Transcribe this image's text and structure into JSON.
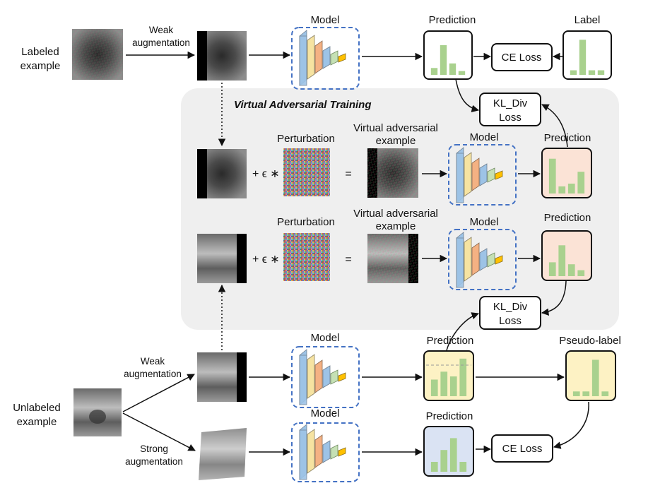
{
  "labels": {
    "labeled_example_1": "Labeled",
    "labeled_example_2": "example",
    "unlabeled_example_1": "Unlabeled",
    "unlabeled_example_2": "example",
    "weak_aug_top_1": "Weak",
    "weak_aug_top_2": "augmentation",
    "weak_aug_bottom_1": "Weak",
    "weak_aug_bottom_2": "augmentation",
    "strong_aug_1": "Strong",
    "strong_aug_2": "augmentation",
    "model_1": "Model",
    "model_2": "Model",
    "model_3": "Model",
    "model_4": "Model",
    "model_5": "Model",
    "prediction_1": "Prediction",
    "prediction_2": "Prediction",
    "prediction_3": "Prediction",
    "prediction_4": "Prediction",
    "prediction_5": "Prediction",
    "label": "Label",
    "pseudo_label": "Pseudo-label",
    "ce_loss_top": "CE Loss",
    "ce_loss_bottom": "CE Loss",
    "kl_div_1a": "KL_Div",
    "kl_div_1b": "Loss",
    "kl_div_2a": "KL_Div",
    "kl_div_2b": "Loss",
    "vat_title": "Virtual Adversarial Training",
    "perturbation_1": "Perturbation",
    "perturbation_2": "Perturbation",
    "vae_1a": "Virtual adversarial",
    "vae_1b": "example",
    "vae_2a": "Virtual adversarial",
    "vae_2b": "example",
    "plus_eps_1": "+ ϵ ∗",
    "plus_eps_2": "+ ϵ ∗",
    "equals_1": "=",
    "equals_2": "="
  },
  "colors": {
    "vat_panel": "#efefef",
    "model_border": "#4472c4",
    "bar": "#a9d18e",
    "pred_white": "#ffffff",
    "pred_pink": "#fbe3d6",
    "pred_yellow": "#fdf2c4",
    "pred_blue": "#dae3f3",
    "layer_blue": "#9dc3e6",
    "layer_yellow": "#f6e3a1",
    "layer_orange": "#f4b183",
    "layer_green": "#c5e0b4",
    "layer_gold": "#ffc000"
  },
  "histograms": {
    "top_prediction": [
      0.18,
      0.78,
      0.3,
      0.1
    ],
    "label": [
      0.12,
      0.92,
      0.12,
      0.12
    ],
    "vat_prediction_1": [
      0.88,
      0.18,
      0.25,
      0.55
    ],
    "vat_prediction_2": [
      0.35,
      0.78,
      0.3,
      0.15
    ],
    "unlabeled_weak_prediction": [
      0.42,
      0.62,
      0.5,
      0.95
    ],
    "pseudo_label": [
      0.12,
      0.12,
      0.92,
      0.12
    ],
    "strong_prediction": [
      0.25,
      0.55,
      0.85,
      0.25
    ]
  }
}
